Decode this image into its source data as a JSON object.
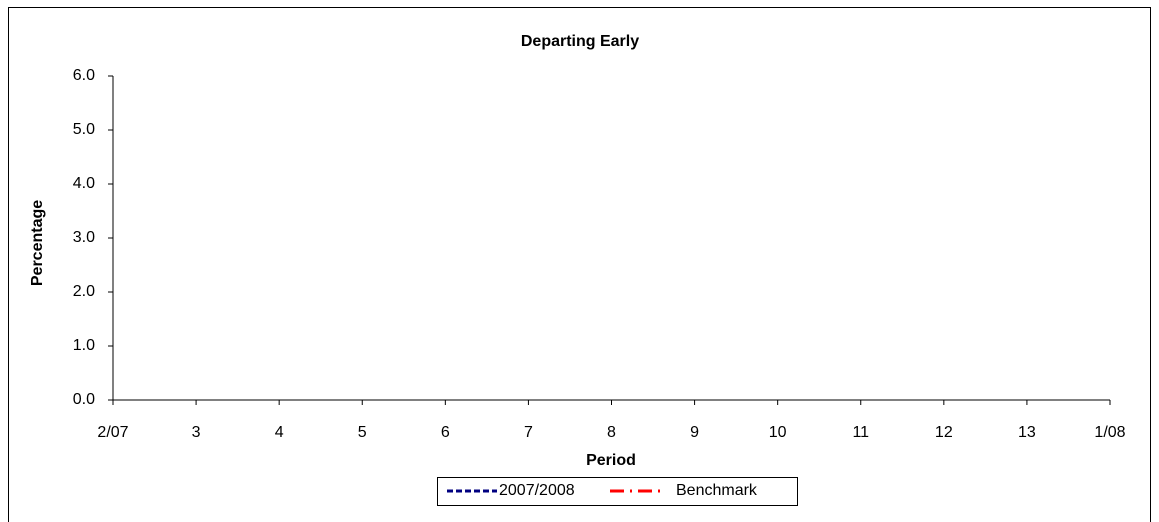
{
  "chart_data": {
    "type": "line",
    "title": "Departing Early",
    "x_label": "Period",
    "y_label": "Percentage",
    "categories": [
      "2/07",
      "3",
      "4",
      "5",
      "6",
      "7",
      "8",
      "9",
      "10",
      "11",
      "12",
      "13",
      "1/08"
    ],
    "series": [
      {
        "name": "2007/2008",
        "color": "#000080",
        "dash": "6,3",
        "values": [
          null,
          null,
          null,
          null,
          null,
          null,
          null,
          null,
          null,
          null,
          null,
          null,
          null
        ]
      },
      {
        "name": "Benchmark",
        "color": "#ff0000",
        "dash": "14,6,2,6",
        "values": [
          null,
          null,
          null,
          null,
          null,
          null,
          null,
          null,
          null,
          null,
          null,
          null,
          null
        ]
      }
    ],
    "ylim": [
      0,
      6
    ],
    "yticks": [
      {
        "value": 0,
        "label": "0.0"
      },
      {
        "value": 1,
        "label": "1.0"
      },
      {
        "value": 2,
        "label": "2.0"
      },
      {
        "value": 3,
        "label": "3.0"
      },
      {
        "value": 4,
        "label": "4.0"
      },
      {
        "value": 5,
        "label": "5.0"
      },
      {
        "value": 6,
        "label": "6.0"
      }
    ],
    "grid": false
  }
}
